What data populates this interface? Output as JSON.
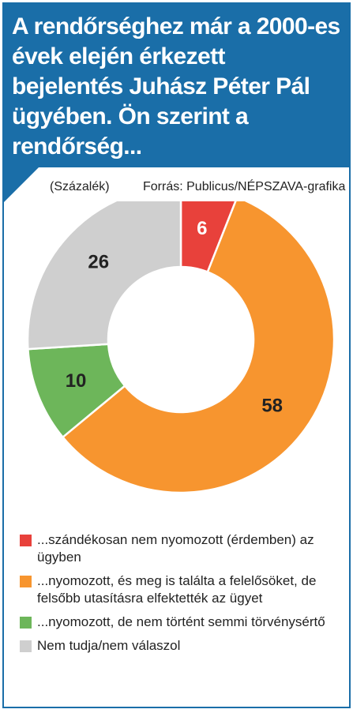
{
  "title": "A rendőrséghez már a 2000-es évek elején érkezett bejelentés Juhász Péter Pál ügyében. Ön szerint a rendőrség...",
  "unit_note": "(Százalék)",
  "source": "Forrás: Publicus/NÉPSZAVA-grafika",
  "colors": {
    "header": "#1a6ea8",
    "red": "#e8413b",
    "orange": "#f7952f",
    "green": "#6db65a",
    "gray": "#cfcfcf"
  },
  "chart_data": {
    "type": "pie",
    "variant": "donut",
    "title": "",
    "start_angle_deg": 0,
    "direction": "clockwise",
    "slices": [
      {
        "label": "...szándékosan nem nyomozott (érdemben) az ügyben",
        "value": 6,
        "value_label": "6",
        "color": "#e8413b"
      },
      {
        "label": "...nyomozott, és meg is találta a felelősöket, de felsőbb utasításra elfektették az ügyet",
        "value": 58,
        "value_label": "58",
        "color": "#f7952f"
      },
      {
        "label": "...nyomozott, de nem történt semmi törvénysértő",
        "value": 10,
        "value_label": "10",
        "color": "#6db65a"
      },
      {
        "label": "Nem tudja/nem válaszol",
        "value": 26,
        "value_label": "26",
        "color": "#cfcfcf"
      }
    ],
    "legend": "bottom"
  }
}
